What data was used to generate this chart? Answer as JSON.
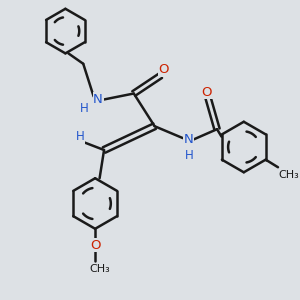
{
  "background_color": "#dde1e5",
  "bond_color": "#1a1a1a",
  "N_color": "#2255cc",
  "O_color": "#cc2200",
  "H_color": "#2255cc",
  "figsize": [
    3.0,
    3.0
  ],
  "dpi": 100,
  "xlim": [
    0,
    10
  ],
  "ylim": [
    0,
    10
  ]
}
